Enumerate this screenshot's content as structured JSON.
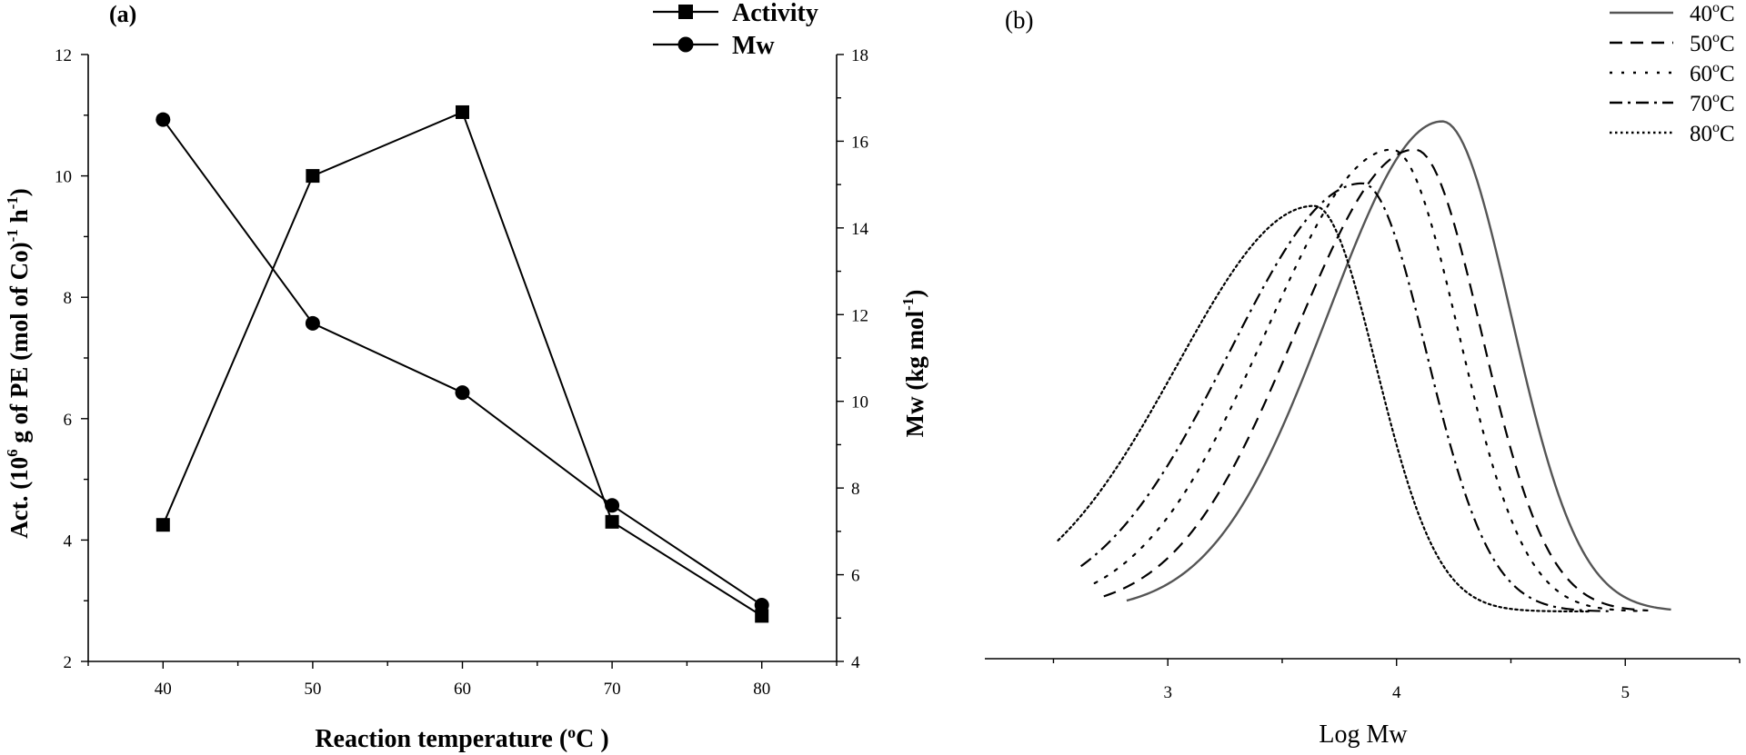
{
  "chart_data": [
    {
      "type": "line",
      "panel_label": "(a)",
      "xlabel": "Reaction temperature (",
      "xlabel_sup": "o",
      "xlabel_end": "C )",
      "ylabel_left": {
        "p1": "Act. (10",
        "s1": "6",
        "p2": " g of PE (mol of Co)",
        "s2": "-1",
        "p3": " h",
        "s3": "-1",
        "p4": ")"
      },
      "ylabel_right": {
        "p1": "Mw (kg mol",
        "s1": "-1",
        "p2": ")"
      },
      "x": [
        40,
        50,
        60,
        70,
        80
      ],
      "xticks": [
        "40",
        "50",
        "60",
        "70",
        "80"
      ],
      "xlim": [
        35,
        85
      ],
      "ylim_left": [
        2,
        12
      ],
      "yticks_left": [
        "2",
        "4",
        "6",
        "8",
        "10",
        "12"
      ],
      "ylim_right": [
        4,
        18
      ],
      "yticks_right": [
        "4",
        "6",
        "8",
        "10",
        "12",
        "14",
        "16",
        "18"
      ],
      "legend_position": "top-right",
      "series": [
        {
          "name": "Activity",
          "axis": "left",
          "marker": "square",
          "values": [
            4.25,
            10.0,
            11.05,
            4.3,
            2.75
          ]
        },
        {
          "name": "Mw",
          "axis": "right",
          "marker": "circle",
          "values": [
            16.5,
            11.8,
            10.2,
            7.6,
            5.3
          ]
        }
      ]
    },
    {
      "type": "line",
      "panel_label": "(b)",
      "xlabel": "Log Mw",
      "xticks": [
        "3",
        "4",
        "5"
      ],
      "xlim": [
        2.2,
        5.5
      ],
      "legend_position": "top-right",
      "series": [
        {
          "name": "40",
          "unit": "C",
          "style": "solid",
          "color": "#555555",
          "mu": 4.2,
          "peak": 0.87,
          "sigma_left": 0.5,
          "sigma_right": 0.3,
          "x_start": 2.82,
          "x_end": 5.2
        },
        {
          "name": "50",
          "unit": "C",
          "style": "dashed",
          "color": "#000000",
          "mu": 4.08,
          "peak": 0.82,
          "sigma_left": 0.52,
          "sigma_right": 0.29,
          "x_start": 2.72,
          "x_end": 5.1
        },
        {
          "name": "60",
          "unit": "C",
          "style": "dotted-sparse",
          "color": "#000000",
          "mu": 3.98,
          "peak": 0.82,
          "sigma_left": 0.55,
          "sigma_right": 0.29,
          "x_start": 2.68,
          "x_end": 5.05
        },
        {
          "name": "70",
          "unit": "C",
          "style": "dash-dot",
          "color": "#000000",
          "mu": 3.85,
          "peak": 0.76,
          "sigma_left": 0.58,
          "sigma_right": 0.28,
          "x_start": 2.62,
          "x_end": 4.95
        },
        {
          "name": "80",
          "unit": "C",
          "style": "dotted-dense",
          "color": "#000000",
          "mu": 3.64,
          "peak": 0.72,
          "sigma_left": 0.6,
          "sigma_right": 0.27,
          "x_start": 2.52,
          "x_end": 4.85
        }
      ]
    }
  ]
}
